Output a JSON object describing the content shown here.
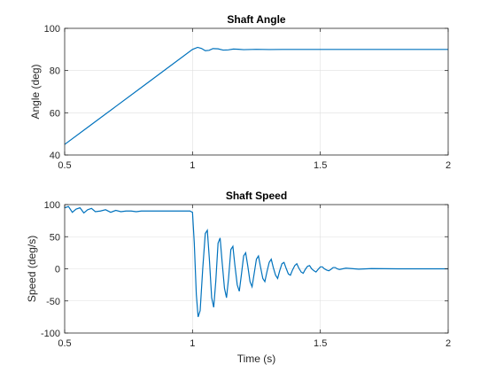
{
  "chart_data": [
    {
      "type": "line",
      "title": "Shaft Angle",
      "xlabel": "",
      "ylabel": "Angle (deg)",
      "xlim": [
        0.5,
        2
      ],
      "ylim": [
        40,
        100
      ],
      "xticks": [
        0.5,
        1,
        1.5,
        2
      ],
      "xtick_labels": [
        "0.5",
        "1",
        "1.5",
        "2"
      ],
      "yticks": [
        40,
        60,
        80,
        100
      ],
      "ytick_labels": [
        "40",
        "60",
        "80",
        "100"
      ],
      "grid": true,
      "color": "#0072BD",
      "series": [
        {
          "x": [
            0.5,
            0.6,
            0.7,
            0.8,
            0.9,
            1.0,
            1.02,
            1.035,
            1.05,
            1.065,
            1.08,
            1.1,
            1.12,
            1.14,
            1.16,
            1.18,
            1.2,
            1.25,
            1.3,
            1.35,
            1.4,
            1.5,
            1.6,
            1.7,
            1.8,
            1.9,
            2.0
          ],
          "y": [
            45,
            54,
            63,
            72,
            81,
            90,
            91,
            90.5,
            89.4,
            89.6,
            90.4,
            90.3,
            89.7,
            89.8,
            90.2,
            90.1,
            89.9,
            90.05,
            89.95,
            90.02,
            90.0,
            90.0,
            90.0,
            90.0,
            90.0,
            90.0,
            90.0
          ]
        }
      ]
    },
    {
      "type": "line",
      "title": "Shaft Speed",
      "xlabel": "Time (s)",
      "ylabel": "Speed (deg/s)",
      "xlim": [
        0.5,
        2
      ],
      "ylim": [
        -100,
        100
      ],
      "xticks": [
        0.5,
        1,
        1.5,
        2
      ],
      "xtick_labels": [
        "0.5",
        "1",
        "1.5",
        "2"
      ],
      "yticks": [
        -100,
        -50,
        0,
        50,
        100
      ],
      "ytick_labels": [
        "-100",
        "-50",
        "0",
        "50",
        "100"
      ],
      "grid": true,
      "color": "#0072BD",
      "series": [
        {
          "x": [
            0.5,
            0.515,
            0.53,
            0.545,
            0.56,
            0.575,
            0.59,
            0.605,
            0.62,
            0.64,
            0.66,
            0.68,
            0.7,
            0.72,
            0.74,
            0.76,
            0.78,
            0.8,
            0.85,
            0.9,
            0.95,
            0.99,
            1.0,
            1.007,
            1.015,
            1.022,
            1.03,
            1.04,
            1.05,
            1.058,
            1.066,
            1.075,
            1.083,
            1.091,
            1.1,
            1.108,
            1.116,
            1.125,
            1.133,
            1.141,
            1.15,
            1.158,
            1.166,
            1.175,
            1.183,
            1.191,
            1.2,
            1.208,
            1.216,
            1.225,
            1.233,
            1.241,
            1.25,
            1.258,
            1.266,
            1.275,
            1.283,
            1.291,
            1.3,
            1.308,
            1.316,
            1.325,
            1.333,
            1.341,
            1.35,
            1.358,
            1.366,
            1.375,
            1.383,
            1.391,
            1.4,
            1.408,
            1.416,
            1.425,
            1.433,
            1.441,
            1.45,
            1.458,
            1.466,
            1.475,
            1.483,
            1.491,
            1.5,
            1.508,
            1.516,
            1.525,
            1.533,
            1.541,
            1.55,
            1.558,
            1.566,
            1.575,
            1.6,
            1.65,
            1.7,
            1.8,
            1.9,
            2.0
          ],
          "y": [
            95,
            97,
            88,
            93,
            95,
            87,
            92,
            94,
            89,
            90,
            92,
            88,
            91,
            89,
            90,
            90,
            89,
            90,
            90,
            90,
            90,
            90,
            88,
            40,
            -40,
            -75,
            -65,
            0,
            55,
            60,
            15,
            -45,
            -60,
            -20,
            40,
            48,
            10,
            -30,
            -45,
            -15,
            30,
            35,
            5,
            -25,
            -35,
            -10,
            20,
            25,
            5,
            -20,
            -28,
            -8,
            15,
            20,
            3,
            -15,
            -20,
            -5,
            10,
            15,
            2,
            -10,
            -15,
            -3,
            8,
            10,
            1,
            -8,
            -10,
            -2,
            5,
            8,
            1,
            -5,
            -7,
            -1,
            4,
            5,
            0,
            -3,
            -5,
            -1,
            3,
            3,
            0,
            -2,
            -3,
            -1,
            2,
            2,
            0,
            -1,
            1,
            -0.5,
            0.3,
            0,
            0,
            0
          ]
        }
      ]
    }
  ]
}
